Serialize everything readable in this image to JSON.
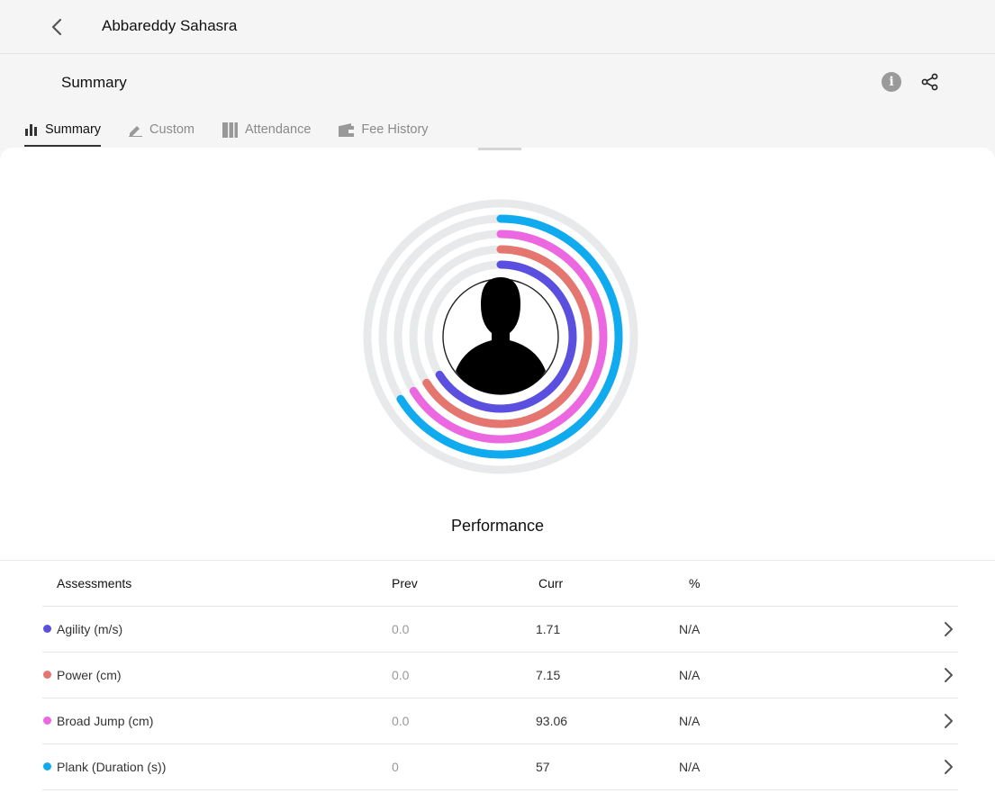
{
  "header": {
    "name": "Abbareddy Sahasra"
  },
  "subheader": {
    "title": "Summary"
  },
  "tabs": [
    {
      "label": "Summary",
      "icon": "bar-chart-icon",
      "active": true
    },
    {
      "label": "Custom",
      "icon": "pencil-icon",
      "active": false
    },
    {
      "label": "Attendance",
      "icon": "calendar-icon",
      "active": false
    },
    {
      "label": "Fee History",
      "icon": "wallet-icon",
      "active": false
    }
  ],
  "performance": {
    "label": "Performance"
  },
  "table": {
    "headers": {
      "assessments": "Assessments",
      "prev": "Prev",
      "curr": "Curr",
      "pct": "%"
    },
    "rows": [
      {
        "name": "Agility (m/s)",
        "prev": "0.0",
        "curr": "1.71",
        "pct": "N/A",
        "color": "#5b4fdf"
      },
      {
        "name": "Power (cm)",
        "prev": "0.0",
        "curr": "7.15",
        "pct": "N/A",
        "color": "#e5766f"
      },
      {
        "name": "Broad Jump (cm)",
        "prev": "0.0",
        "curr": "93.06",
        "pct": "N/A",
        "color": "#ec68e0"
      },
      {
        "name": "Plank (Duration (s))",
        "prev": "0",
        "curr": "57",
        "pct": "N/A",
        "color": "#10aaef"
      }
    ]
  },
  "colors": {
    "track": "#e8e9eb"
  }
}
